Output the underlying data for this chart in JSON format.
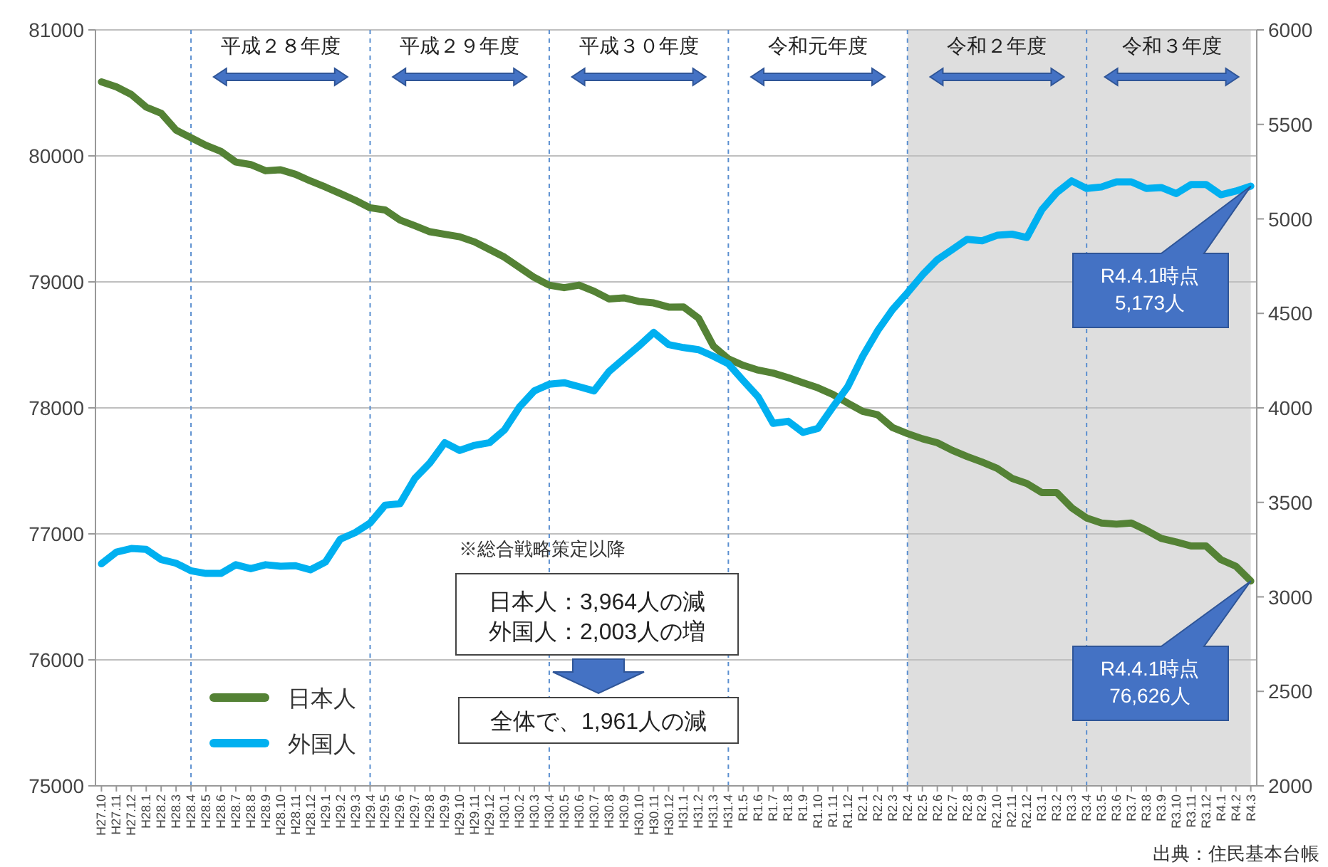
{
  "chart_data": {
    "type": "line",
    "categories": [
      "H27.10",
      "H27.11",
      "H27.12",
      "H28.1",
      "H28.2",
      "H28.3",
      "H28.4",
      "H28.5",
      "H28.6",
      "H28.7",
      "H28.8",
      "H28.9",
      "H28.10",
      "H28.11",
      "H28.12",
      "H29.1",
      "H29.2",
      "H29.3",
      "H29.4",
      "H29.5",
      "H29.6",
      "H29.7",
      "H29.8",
      "H29.9",
      "H29.10",
      "H29.11",
      "H29.12",
      "H30.1",
      "H30.2",
      "H30.3",
      "H30.4",
      "H30.5",
      "H30.6",
      "H30.7",
      "H30.8",
      "H30.9",
      "H30.10",
      "H30.11",
      "H30.12",
      "H31.1",
      "H31.2",
      "H31.3",
      "H31.4",
      "R1.5",
      "R1.6",
      "R1.7",
      "R1.8",
      "R1.9",
      "R1.10",
      "R1.11",
      "R1.12",
      "R2.1",
      "R2.2",
      "R2.3",
      "R2.4",
      "R2.5",
      "R2.6",
      "R2.7",
      "R2.8",
      "R2.9",
      "R2.10",
      "R2.11",
      "R2.12",
      "R3.1",
      "R3.2",
      "R3.3",
      "R3.4",
      "R3.5",
      "R3.6",
      "R3.7",
      "R3.8",
      "R3.9",
      "R3.10",
      "R3.11",
      "R3.12",
      "R4.1",
      "R4.2",
      "R4.3"
    ],
    "series": [
      {
        "name": "日本人",
        "color": "#548235",
        "values": [
          80588,
          80548,
          80487,
          80387,
          80338,
          80205,
          80144,
          80084,
          80036,
          79951,
          79931,
          79882,
          79890,
          79854,
          79801,
          79753,
          79701,
          79648,
          79588,
          79571,
          79491,
          79446,
          79398,
          79378,
          79358,
          79317,
          79257,
          79196,
          79115,
          79035,
          78974,
          78954,
          78974,
          78926,
          78865,
          78873,
          78845,
          78833,
          78800,
          78801,
          78712,
          78490,
          78389,
          78337,
          78300,
          78276,
          78240,
          78199,
          78159,
          78107,
          78038,
          77973,
          77945,
          77844,
          77796,
          77755,
          77723,
          77663,
          77614,
          77570,
          77521,
          77441,
          77400,
          77328,
          77328,
          77207,
          77126,
          77086,
          77077,
          77086,
          77029,
          76964,
          76936,
          76904,
          76904,
          76795,
          76743,
          76626
        ]
      },
      {
        "name": "外国人",
        "color": "#00b0f0",
        "axis": "y2",
        "values": [
          3175,
          3237,
          3256,
          3251,
          3197,
          3178,
          3138,
          3124,
          3124,
          3170,
          3149,
          3170,
          3162,
          3165,
          3143,
          3184,
          3305,
          3340,
          3391,
          3485,
          3493,
          3627,
          3708,
          3816,
          3775,
          3802,
          3816,
          3883,
          4004,
          4090,
          4125,
          4133,
          4112,
          4090,
          4192,
          4260,
          4327,
          4399,
          4335,
          4319,
          4308,
          4273,
          4233,
          4144,
          4058,
          3918,
          3929,
          3870,
          3891,
          4004,
          4112,
          4273,
          4408,
          4520,
          4609,
          4703,
          4784,
          4838,
          4892,
          4884,
          4913,
          4919,
          4902,
          5048,
          5139,
          5201,
          5161,
          5169,
          5196,
          5196,
          5161,
          5166,
          5134,
          5182,
          5182,
          5128,
          5147,
          5173
        ]
      }
    ],
    "ylim": [
      75000,
      81000
    ],
    "yticks": [
      75000,
      76000,
      77000,
      78000,
      79000,
      80000,
      81000
    ],
    "y2lim": [
      2000,
      6000
    ],
    "y2ticks": [
      2000,
      2500,
      3000,
      3500,
      4000,
      4500,
      5000,
      5500,
      6000
    ],
    "grid": "y",
    "legend": "bottom left",
    "marker": "none",
    "line_style": "solid",
    "ref_lines": [
      {
        "axis": "x",
        "value": "H28.4",
        "label": "平成２８年度",
        "line_style": "dashed",
        "color": "#5b8fd0"
      },
      {
        "axis": "x",
        "value": "H29.4",
        "label": "平成２９年度",
        "line_style": "dashed",
        "color": "#5b8fd0"
      },
      {
        "axis": "x",
        "value": "H30.4",
        "label": "平成３０年度",
        "line_style": "dashed",
        "color": "#5b8fd0"
      },
      {
        "axis": "x",
        "value": "H31.4",
        "label": "令和元年度",
        "line_style": "dashed",
        "color": "#5b8fd0"
      },
      {
        "axis": "x",
        "value": "R2.4",
        "label": "令和２年度",
        "line_style": "dashed",
        "color": "#5b8fd0"
      },
      {
        "axis": "x",
        "value": "R3.4",
        "label": "令和３年度",
        "line_style": "dashed",
        "color": "#5b8fd0"
      }
    ],
    "bands": [
      {
        "axis": "x",
        "from": "R2.4",
        "to": "R4.3",
        "color": "#dedede"
      }
    ],
    "annotations": [
      "※総合戦略策定以降",
      "日本人：3,964人の減",
      "外国人：2,003人の増",
      "全体で、1,961人の減",
      "R4.4.1時点\n5,173人",
      "R4.4.1時点\n76,626人",
      "出典：住民基本台帳"
    ]
  }
}
